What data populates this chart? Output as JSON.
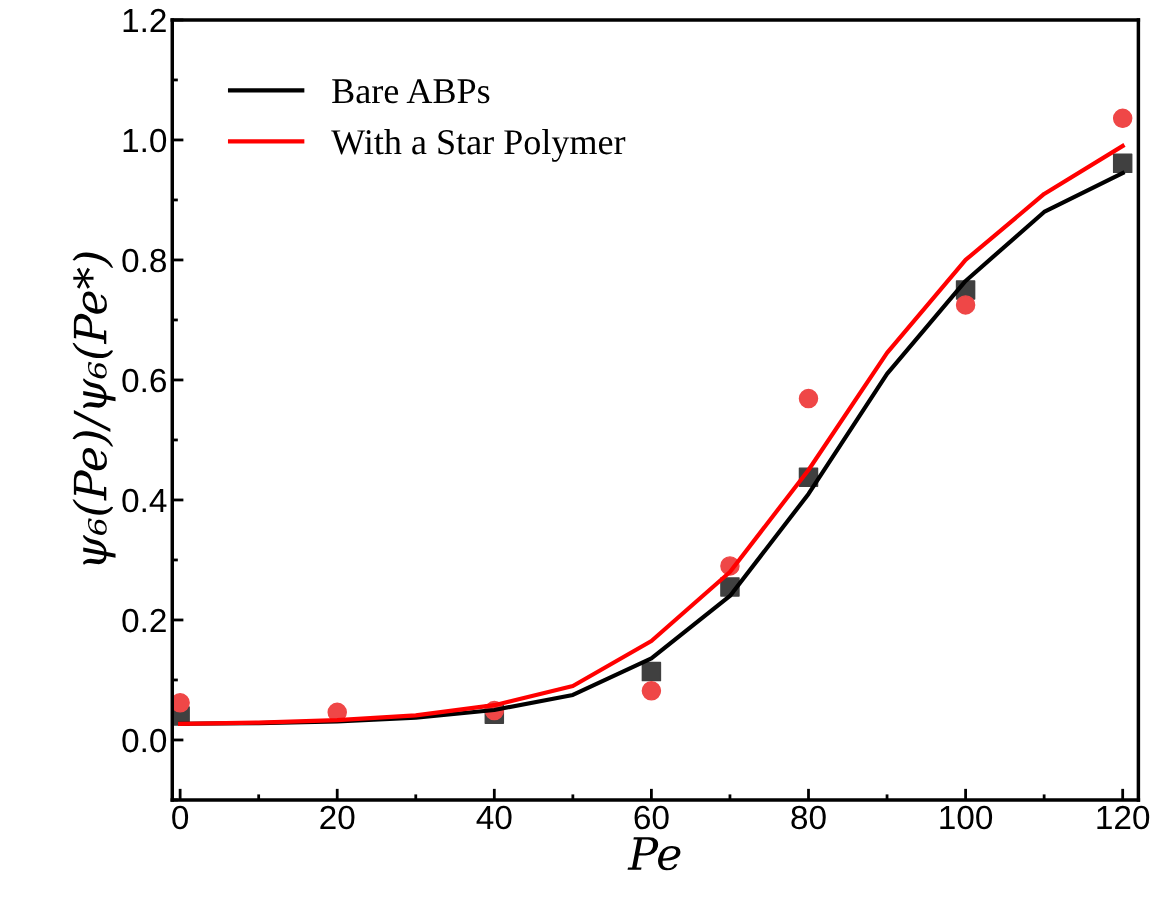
{
  "chart_data": {
    "type": "scatter",
    "xlabel": "Pe",
    "ylabel": "ψ₆(Pe)/ψ₆(Pe*)",
    "xlim": [
      -1,
      122
    ],
    "xticks": [
      0,
      20,
      40,
      60,
      80,
      100,
      120
    ],
    "ylim": [
      -0.1,
      1.2
    ],
    "yticks": [
      {
        "value": 0,
        "label": "0.0"
      },
      0.2,
      0.4,
      0.6,
      0.8,
      {
        "value": 1,
        "label": "1.0"
      },
      1.2
    ],
    "grid": false,
    "legend": "top left",
    "series": [
      {
        "marker": "square",
        "color": "#404040",
        "x": [
          0,
          20,
          40,
          60,
          70,
          80,
          100,
          120
        ],
        "values": [
          0.04,
          null,
          0.043,
          0.114,
          0.255,
          0.438,
          0.75,
          0.961
        ]
      },
      {
        "marker": "circle",
        "color": "#ef4747",
        "x": [
          0,
          20,
          40,
          60,
          70,
          80,
          100,
          120
        ],
        "values": [
          0.062,
          0.046,
          0.049,
          0.082,
          0.29,
          0.569,
          0.725,
          1.036
        ]
      },
      {
        "type": "line",
        "name": "Bare ABPs",
        "color": "#000000",
        "x": [
          0,
          10,
          20,
          30,
          40,
          50,
          60,
          70,
          80,
          90,
          100,
          110,
          120
        ],
        "values": [
          0.027,
          0.028,
          0.031,
          0.037,
          0.05,
          0.075,
          0.136,
          0.24,
          0.41,
          0.61,
          0.765,
          0.88,
          0.945
        ]
      },
      {
        "type": "line",
        "name": "With a Star Polymer",
        "color": "#ff0000",
        "x": [
          0,
          10,
          20,
          30,
          40,
          50,
          60,
          70,
          80,
          90,
          100,
          110,
          120
        ],
        "values": [
          0.027,
          0.029,
          0.033,
          0.041,
          0.058,
          0.09,
          0.165,
          0.28,
          0.45,
          0.645,
          0.8,
          0.91,
          0.99
        ]
      }
    ]
  }
}
